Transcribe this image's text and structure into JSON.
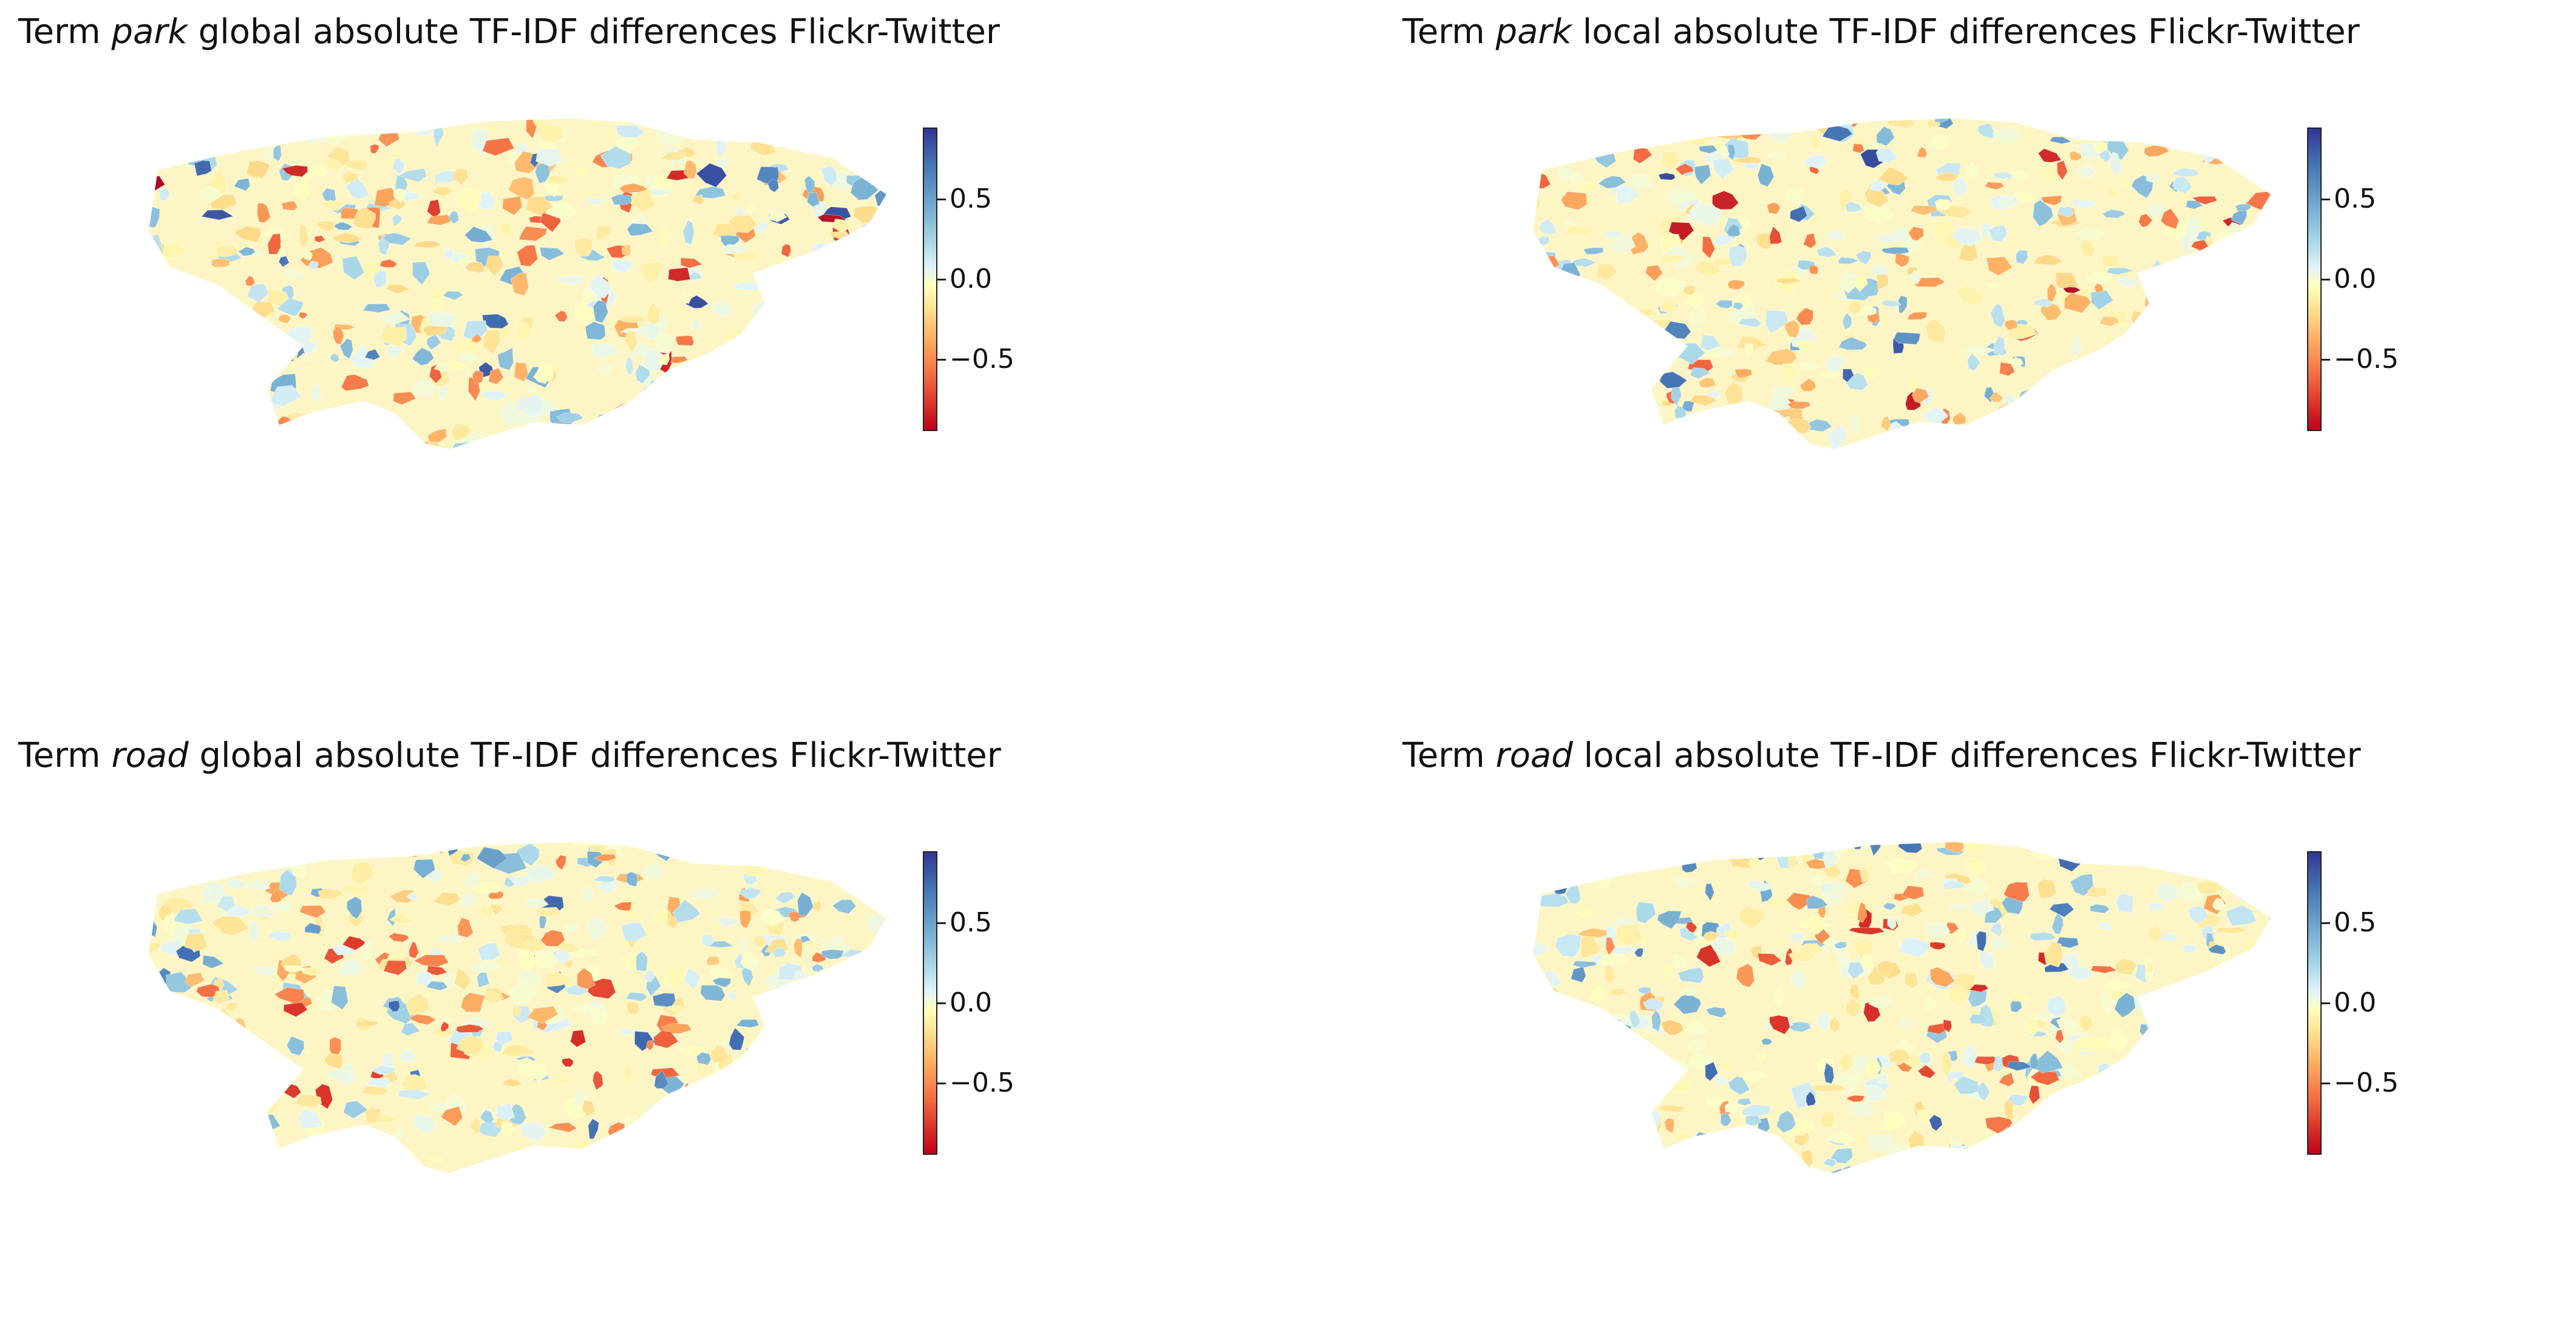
{
  "panels": [
    {
      "id": "park-global",
      "prefix": "Term ",
      "term": "park",
      "suffix": " global absolute TF-IDF differences Flickr-Twitter",
      "term_key": "park"
    },
    {
      "id": "park-local",
      "prefix": "Term ",
      "term": "park",
      "suffix": " local absolute TF-IDF differences Flickr-Twitter",
      "term_key": "park"
    },
    {
      "id": "road-global",
      "prefix": "Term ",
      "term": "road",
      "suffix": " global absolute TF-IDF differences Flickr-Twitter",
      "term_key": "road"
    },
    {
      "id": "road-local",
      "prefix": "Term ",
      "term": "road",
      "suffix": " local absolute TF-IDF differences Flickr-Twitter",
      "term_key": "road"
    }
  ],
  "colorbar": {
    "range": [
      -0.95,
      0.95
    ],
    "colormap": "RdYlBu",
    "ticks": [
      {
        "value": 0.5,
        "label": "0.5"
      },
      {
        "value": 0.0,
        "label": "0.0"
      },
      {
        "value": -0.5,
        "label": "−0.5"
      }
    ]
  },
  "colors": {
    "strong_positive": "#313695",
    "positive": "#4575b4",
    "neutral": "#ffffbf",
    "negative": "#f46d43",
    "strong_negative": "#d73027"
  }
}
